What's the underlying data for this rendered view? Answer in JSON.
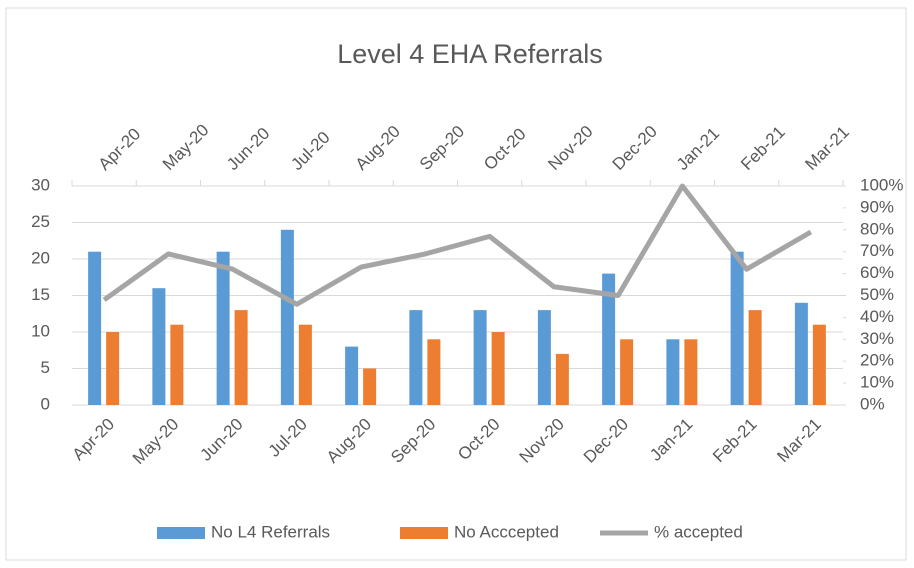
{
  "chart_data": {
    "type": "bar",
    "title": "Level 4 EHA Referrals",
    "categories": [
      "Apr-20",
      "May-20",
      "Jun-20",
      "Jul-20",
      "Aug-20",
      "Sep-20",
      "Oct-20",
      "Nov-20",
      "Dec-20",
      "Jan-21",
      "Feb-21",
      "Mar-21"
    ],
    "series": [
      {
        "name": "No L4 Referrals",
        "color": "#5b9bd5",
        "values": [
          21,
          16,
          21,
          24,
          8,
          13,
          13,
          13,
          18,
          9,
          21,
          14
        ]
      },
      {
        "name": "No Acccepted",
        "color": "#ed7d31",
        "values": [
          10,
          11,
          13,
          11,
          5,
          9,
          10,
          7,
          9,
          9,
          13,
          11
        ]
      },
      {
        "name": "% accepted",
        "color": "#a5a5a5",
        "type": "line",
        "axis": "y2",
        "values": [
          48,
          69,
          62,
          46,
          63,
          69,
          77,
          54,
          50,
          100,
          62,
          79
        ]
      }
    ],
    "ylim": [
      0,
      30
    ],
    "yticks": [
      0,
      5,
      10,
      15,
      20,
      25,
      30
    ],
    "y2lim": [
      0,
      100
    ],
    "y2ticks": [
      {
        "value": 0,
        "label": "0%"
      },
      {
        "value": 10,
        "label": "10%"
      },
      {
        "value": 20,
        "label": "20%"
      },
      {
        "value": 30,
        "label": "30%"
      },
      {
        "value": 40,
        "label": "40%"
      },
      {
        "value": 50,
        "label": "50%"
      },
      {
        "value": 60,
        "label": "60%"
      },
      {
        "value": 70,
        "label": "70%"
      },
      {
        "value": 80,
        "label": "80%"
      },
      {
        "value": 90,
        "label": "90%"
      },
      {
        "value": 100,
        "label": "100%"
      }
    ],
    "grid": true,
    "legend": "bottom"
  }
}
